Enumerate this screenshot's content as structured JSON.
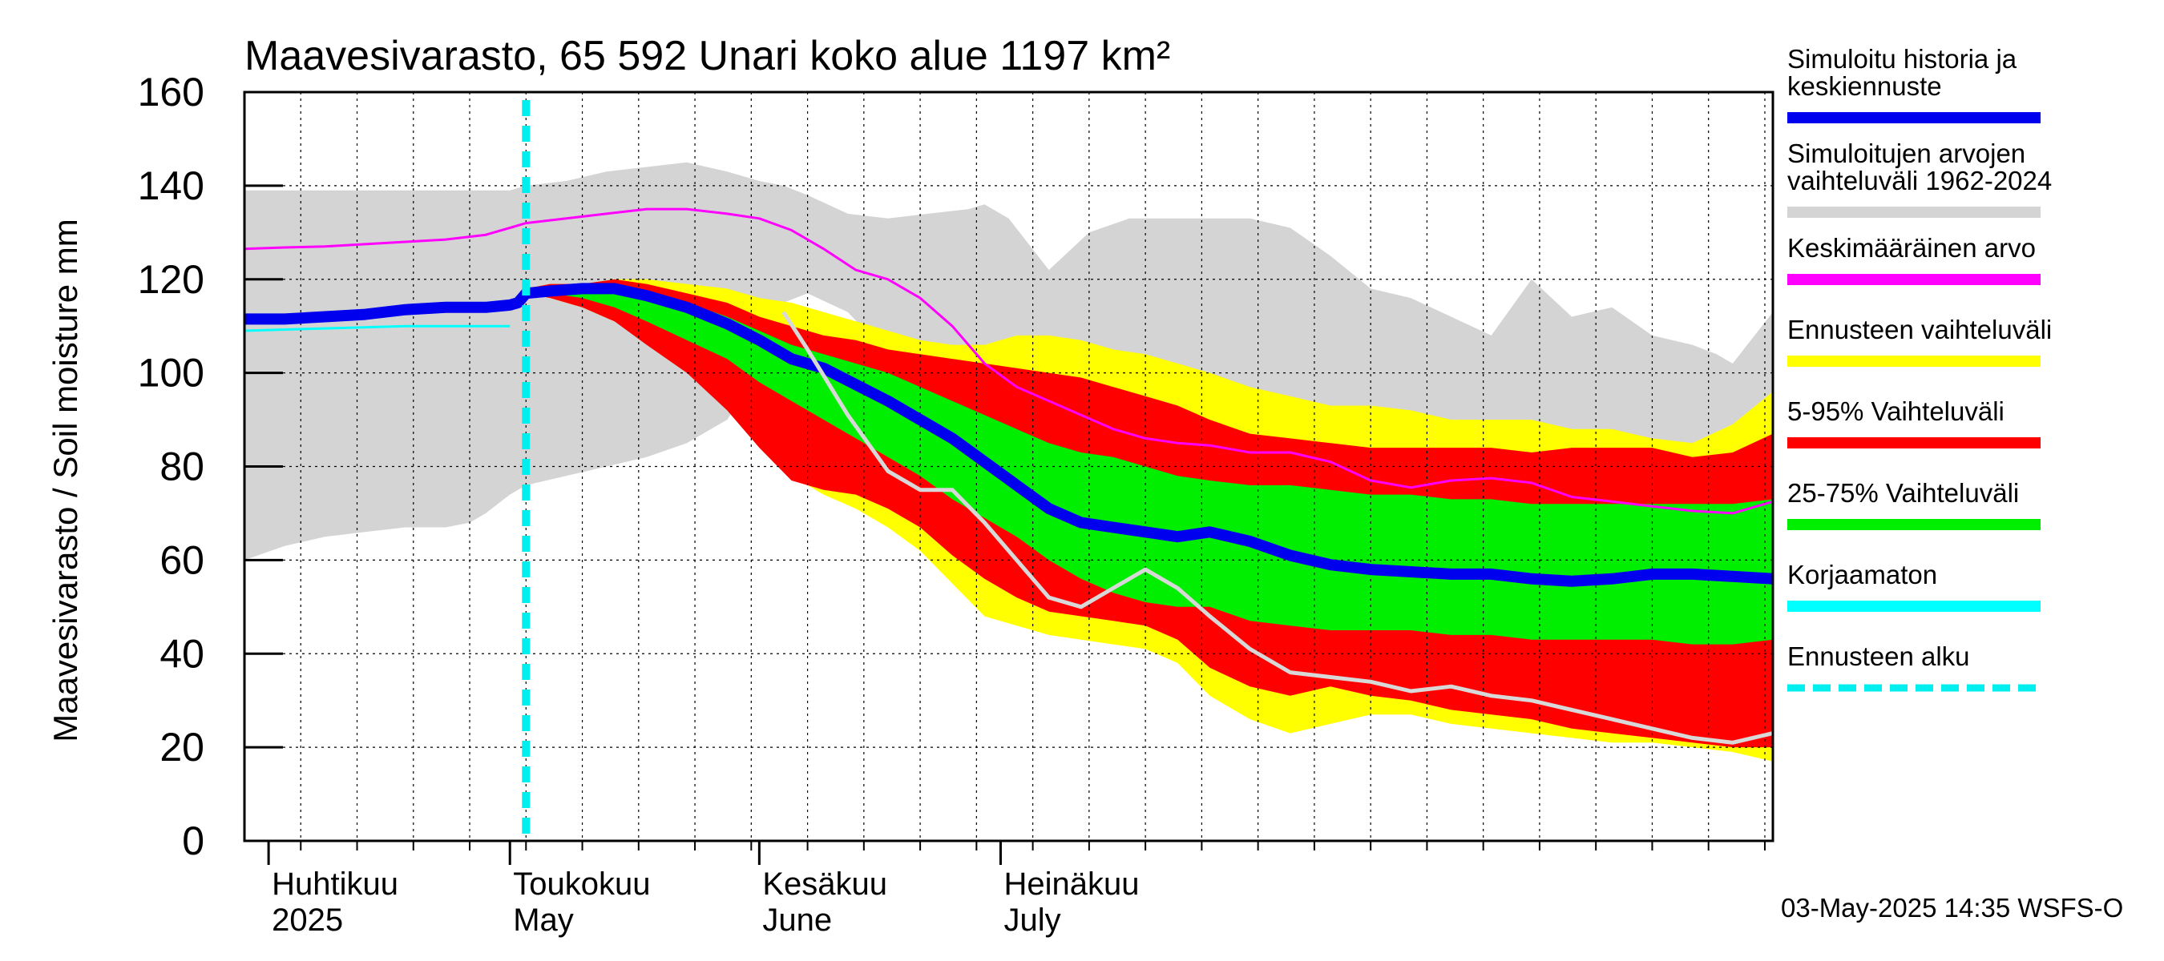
{
  "chart_data": {
    "type": "area",
    "title": "Maavesivarasto, 65 592 Unari koko alue 1197 km²",
    "ylabel": "Maavesivarasto / Soil moisture   mm",
    "ylim": [
      0,
      160
    ],
    "yticks": [
      0,
      20,
      40,
      60,
      80,
      100,
      120,
      140,
      160
    ],
    "xlim": [
      0,
      190
    ],
    "x_unit": "days since 2025-03-29",
    "months": [
      {
        "fi": "Huhtikuu",
        "en": "2025",
        "day": 3
      },
      {
        "fi": "Toukokuu",
        "en": "May",
        "day": 33
      },
      {
        "fi": "Kesäkuu",
        "en": "June",
        "day": 64
      },
      {
        "fi": "Heinäkuu",
        "en": "July",
        "day": 94
      }
    ],
    "forecast_start_day": 35,
    "series": [
      {
        "name": "Simuloitujen arvojen vaihteluväli 1962-2024",
        "kind": "band",
        "color": "#d4d4d4",
        "x": [
          0,
          5,
          10,
          15,
          20,
          25,
          28,
          30,
          33,
          35,
          40,
          45,
          50,
          55,
          60,
          64,
          67,
          70,
          75,
          80,
          85,
          90,
          92,
          95,
          100,
          105,
          110,
          115,
          120,
          125,
          130,
          135,
          140,
          145,
          150,
          155,
          160,
          165,
          170,
          175,
          180,
          183,
          185,
          190
        ],
        "upper": [
          139,
          139,
          139,
          139,
          139,
          139,
          139,
          139,
          139,
          140,
          141,
          143,
          144,
          145,
          143,
          141,
          140,
          138,
          134,
          133,
          134,
          135,
          136,
          133,
          122,
          130,
          133,
          133,
          133,
          133,
          131,
          125,
          118,
          116,
          112,
          108,
          120,
          112,
          114,
          108,
          106,
          104,
          102,
          113
        ],
        "lower": [
          60,
          63,
          65,
          66,
          67,
          67,
          68,
          70,
          74,
          76,
          78,
          80,
          82,
          85,
          90,
          100,
          115,
          117,
          113,
          104,
          101,
          100,
          103,
          104,
          103,
          97,
          93,
          92,
          91,
          90,
          90,
          88,
          92,
          91,
          90,
          90,
          88,
          87,
          85,
          85,
          84,
          82,
          83,
          88
        ]
      },
      {
        "name": "Ennusteen vaihteluväli",
        "kind": "band",
        "color": "#ffff00",
        "x": [
          35,
          38,
          42,
          46,
          50,
          55,
          60,
          64,
          68,
          72,
          76,
          80,
          84,
          88,
          92,
          96,
          100,
          104,
          108,
          112,
          116,
          120,
          125,
          130,
          135,
          140,
          145,
          150,
          155,
          160,
          165,
          170,
          175,
          180,
          185,
          190
        ],
        "upper": [
          118,
          119,
          119,
          120,
          120,
          119,
          118,
          116,
          115,
          113,
          111,
          109,
          107,
          106,
          106,
          108,
          108,
          107,
          105,
          104,
          102,
          100,
          97,
          95,
          93,
          93,
          92,
          90,
          90,
          90,
          88,
          88,
          86,
          85,
          89,
          96
        ],
        "lower": [
          117,
          116,
          114,
          111,
          107,
          102,
          95,
          86,
          78,
          74,
          71,
          67,
          62,
          55,
          48,
          46,
          44,
          43,
          42,
          41,
          38,
          31,
          26,
          23,
          25,
          27,
          27,
          25,
          24,
          23,
          22,
          21,
          21,
          20,
          19,
          17
        ]
      },
      {
        "name": "5-95% Vaihteluväli",
        "kind": "band",
        "color": "#ff0000",
        "x": [
          35,
          38,
          42,
          46,
          50,
          55,
          60,
          64,
          68,
          72,
          76,
          80,
          84,
          88,
          92,
          96,
          100,
          104,
          108,
          112,
          116,
          120,
          125,
          130,
          135,
          140,
          145,
          150,
          155,
          160,
          165,
          170,
          175,
          180,
          185,
          190
        ],
        "upper": [
          118,
          119,
          119,
          120,
          119,
          117,
          115,
          112,
          110,
          108,
          107,
          105,
          104,
          103,
          102,
          101,
          100,
          99,
          97,
          95,
          93,
          90,
          87,
          86,
          85,
          84,
          84,
          84,
          84,
          83,
          84,
          84,
          84,
          82,
          83,
          87
        ],
        "lower": [
          117,
          116,
          114,
          111,
          106,
          100,
          92,
          84,
          77,
          75,
          74,
          71,
          67,
          61,
          56,
          52,
          49,
          48,
          47,
          46,
          43,
          37,
          33,
          31,
          33,
          31,
          30,
          28,
          27,
          26,
          24,
          23,
          22,
          21,
          20,
          20
        ]
      },
      {
        "name": "25-75% Vaihteluväli",
        "kind": "band",
        "color": "#00ee00",
        "x": [
          35,
          38,
          42,
          46,
          50,
          55,
          60,
          64,
          68,
          72,
          76,
          80,
          84,
          88,
          92,
          96,
          100,
          104,
          108,
          112,
          116,
          120,
          125,
          130,
          135,
          140,
          145,
          150,
          155,
          160,
          165,
          170,
          175,
          180,
          185,
          190
        ],
        "upper": [
          118,
          118,
          118,
          118,
          117,
          115,
          112,
          109,
          106,
          104,
          102,
          100,
          97,
          94,
          91,
          88,
          85,
          83,
          82,
          80,
          78,
          77,
          76,
          76,
          75,
          74,
          74,
          73,
          73,
          72,
          72,
          72,
          72,
          72,
          72,
          73
        ],
        "lower": [
          117,
          117,
          116,
          114,
          111,
          107,
          103,
          98,
          94,
          90,
          86,
          82,
          78,
          73,
          69,
          65,
          60,
          56,
          53,
          51,
          50,
          50,
          47,
          46,
          45,
          45,
          45,
          44,
          44,
          43,
          43,
          43,
          43,
          42,
          42,
          43
        ]
      },
      {
        "name": "Simuloitu historia ja keskiennuste",
        "kind": "line",
        "color": "#0000ee",
        "x": [
          0,
          5,
          10,
          15,
          20,
          25,
          30,
          33,
          34,
          35,
          38,
          42,
          46,
          50,
          55,
          60,
          64,
          68,
          72,
          76,
          80,
          84,
          88,
          92,
          96,
          100,
          104,
          108,
          112,
          116,
          120,
          125,
          130,
          135,
          140,
          145,
          150,
          155,
          160,
          165,
          170,
          175,
          180,
          185,
          190
        ],
        "values": [
          111.5,
          111.5,
          112,
          112.5,
          113.5,
          114,
          114,
          114.5,
          115,
          117,
          117.5,
          118,
          118,
          116.5,
          114,
          110.5,
          107,
          103,
          101,
          97.5,
          94,
          90,
          86,
          81,
          76,
          71,
          68,
          67,
          66,
          65,
          66,
          64,
          61,
          59,
          58,
          57.5,
          57,
          57,
          56,
          55.5,
          56,
          57,
          57,
          56.5,
          56
        ]
      },
      {
        "name": "Keskimääräinen arvo",
        "kind": "line",
        "color": "#ff00ff",
        "x": [
          0,
          5,
          10,
          15,
          20,
          25,
          30,
          33,
          35,
          40,
          45,
          50,
          55,
          60,
          64,
          68,
          72,
          76,
          80,
          84,
          88,
          92,
          96,
          100,
          104,
          108,
          112,
          116,
          120,
          125,
          130,
          135,
          140,
          145,
          150,
          155,
          160,
          165,
          170,
          175,
          180,
          185,
          190
        ],
        "values": [
          126.5,
          126.8,
          127,
          127.5,
          128,
          128.5,
          129.5,
          131,
          132,
          133,
          134,
          135,
          135,
          134,
          133,
          130.5,
          126.5,
          122,
          120,
          116,
          110,
          102,
          97,
          94,
          91,
          88,
          86,
          85,
          84.5,
          83,
          83,
          81,
          77,
          75.5,
          77,
          77.5,
          76.5,
          73.5,
          72.5,
          71.5,
          70.5,
          70,
          72.5
        ]
      },
      {
        "name": "Korjaamaton",
        "kind": "line",
        "color": "#00ffff",
        "x": [
          0,
          10,
          20,
          25,
          30,
          33
        ],
        "values": [
          109,
          109.5,
          110,
          110,
          110,
          110
        ]
      },
      {
        "name": "unlabelled",
        "kind": "line",
        "color": "#d8d8d8",
        "x": [
          67,
          70,
          75,
          80,
          84,
          88,
          92,
          96,
          100,
          104,
          108,
          112,
          116,
          120,
          125,
          130,
          135,
          140,
          145,
          150,
          155,
          160,
          165,
          170,
          175,
          180,
          185,
          190
        ],
        "values": [
          113,
          105,
          91,
          79,
          75,
          75,
          68,
          60,
          52,
          50,
          54,
          58,
          54,
          48,
          41,
          36,
          35,
          34,
          32,
          33,
          31,
          30,
          28,
          26,
          24,
          22,
          21,
          23
        ]
      }
    ],
    "legend": [
      {
        "label": "Simuloitu historia ja\nkeskiennuste",
        "color": "#0000ee",
        "style": "solid"
      },
      {
        "label": "Simuloitujen arvojen\nvaihteluväli 1962-2024",
        "color": "#d4d4d4",
        "style": "solid"
      },
      {
        "label": "Keskimääräinen arvo",
        "color": "#ff00ff",
        "style": "solid"
      },
      {
        "label": "Ennusteen vaihteluväli",
        "color": "#ffff00",
        "style": "solid"
      },
      {
        "label": "5-95% Vaihteluväli",
        "color": "#ff0000",
        "style": "solid"
      },
      {
        "label": "25-75% Vaihteluväli",
        "color": "#00ee00",
        "style": "solid"
      },
      {
        "label": "Korjaamaton",
        "color": "#00ffff",
        "style": "solid"
      },
      {
        "label": "Ennusteen alku",
        "color": "#00eeee",
        "style": "dashed"
      }
    ],
    "legend_position": "right",
    "grid": true,
    "footer": "03-May-2025 14:35 WSFS-O"
  }
}
